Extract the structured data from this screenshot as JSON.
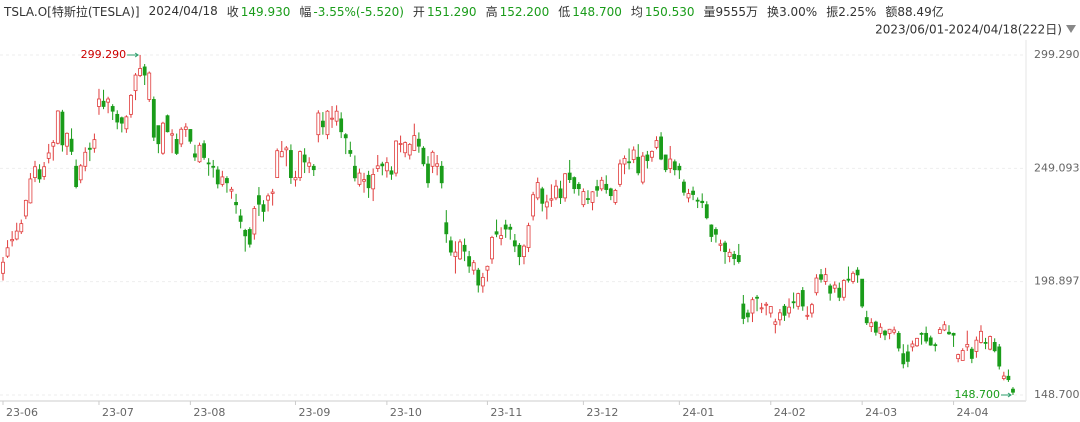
{
  "header": {
    "symbol": "TSLA.O[特斯拉(TESLA)]",
    "date": "2024/04/18",
    "fields": [
      {
        "label": "收",
        "value": "149.930"
      },
      {
        "label": "幅",
        "value": "-3.55%(-5.520)"
      },
      {
        "label": "开",
        "value": "151.290"
      },
      {
        "label": "高",
        "value": "152.200"
      },
      {
        "label": "低",
        "value": "148.700"
      },
      {
        "label": "均",
        "value": "150.530"
      },
      {
        "label": "量",
        "value": "9555万"
      },
      {
        "label": "换",
        "value": "3.00%"
      },
      {
        "label": "振",
        "value": "2.25%"
      },
      {
        "label": "额",
        "value": "88.49亿"
      }
    ]
  },
  "chart_data": {
    "type": "candlestick",
    "subtitle": "2023/06/01-2024/04/18(222日)",
    "max_label": "299.290",
    "min_label": "148.700",
    "up_color": "#e03c3c",
    "down_color": "#1a9c1a",
    "grid": true,
    "ylim": [
      148.7,
      299.29
    ],
    "yticks": [
      {
        "value": 299.29,
        "label": "299.290"
      },
      {
        "value": 249.093,
        "label": "249.093"
      },
      {
        "value": 198.897,
        "label": "198.897"
      },
      {
        "value": 148.7,
        "label": "148.700"
      }
    ],
    "xticks": [
      {
        "value": 0,
        "label": "23-06"
      },
      {
        "value": 21,
        "label": "23-07"
      },
      {
        "value": 41,
        "label": "23-08"
      },
      {
        "value": 64,
        "label": "23-09"
      },
      {
        "value": 84,
        "label": "23-10"
      },
      {
        "value": 106,
        "label": "23-11"
      },
      {
        "value": 127,
        "label": "23-12"
      },
      {
        "value": 148,
        "label": "24-01"
      },
      {
        "value": 168,
        "label": "24-02"
      },
      {
        "value": 188,
        "label": "24-03"
      },
      {
        "value": 208,
        "label": "24-04"
      }
    ],
    "candles": [
      [
        202.6,
        209.8,
        199.4,
        207.5
      ],
      [
        210.2,
        217.3,
        209.4,
        213.9
      ],
      [
        217.0,
        221.3,
        214.5,
        217.6
      ],
      [
        217.8,
        225.0,
        217.2,
        221.3
      ],
      [
        221.0,
        226.4,
        220.0,
        224.6
      ],
      [
        228.0,
        235.2,
        226.6,
        234.9
      ],
      [
        233.8,
        247.0,
        233.5,
        244.4
      ],
      [
        245.0,
        252.4,
        243.0,
        249.8
      ],
      [
        248.5,
        250.9,
        242.7,
        244.4
      ],
      [
        245.5,
        251.9,
        244.0,
        249.8
      ],
      [
        253.5,
        259.9,
        251.3,
        255.9
      ],
      [
        258.9,
        261.6,
        252.5,
        260.5
      ],
      [
        260.2,
        274.8,
        259.7,
        274.5
      ],
      [
        274.0,
        275.0,
        256.5,
        259.5
      ],
      [
        258.9,
        265.0,
        255.0,
        264.6
      ],
      [
        262.0,
        266.8,
        255.0,
        256.6
      ],
      [
        250.0,
        253.0,
        240.2,
        241.0
      ],
      [
        244.0,
        251.0,
        242.5,
        250.2
      ],
      [
        250.0,
        258.4,
        247.8,
        256.2
      ],
      [
        258.0,
        260.5,
        252.3,
        257.5
      ],
      [
        258.0,
        264.5,
        256.0,
        261.8
      ],
      [
        276.5,
        284.3,
        272.8,
        279.8
      ],
      [
        278.8,
        283.9,
        275.3,
        276.5
      ],
      [
        278.4,
        280.8,
        273.5,
        279.8
      ],
      [
        276.5,
        277.5,
        270.5,
        274.4
      ],
      [
        273.0,
        274.8,
        266.4,
        269.6
      ],
      [
        271.5,
        272.0,
        265.0,
        269.1
      ],
      [
        266.6,
        272.6,
        264.8,
        271.9
      ],
      [
        273.0,
        282.0,
        271.5,
        281.4
      ],
      [
        283.5,
        291.3,
        279.3,
        290.4
      ],
      [
        290.2,
        299.29,
        289.5,
        293.3
      ],
      [
        294.0,
        295.3,
        286.0,
        290.4
      ],
      [
        279.6,
        292.0,
        278.5,
        291.3
      ],
      [
        279.6,
        280.9,
        261.2,
        262.9
      ],
      [
        268.0,
        268.0,
        255.8,
        260.0
      ],
      [
        255.8,
        269.7,
        255.1,
        269.1
      ],
      [
        272.4,
        272.9,
        265.0,
        265.3
      ],
      [
        263.8,
        266.4,
        255.8,
        264.4
      ],
      [
        261.9,
        264.5,
        255.0,
        255.7
      ],
      [
        259.9,
        267.3,
        258.5,
        266.4
      ],
      [
        266.3,
        269.1,
        263.0,
        267.4
      ],
      [
        266.3,
        266.5,
        260.0,
        261.1
      ],
      [
        255.5,
        259.5,
        252.4,
        254.1
      ],
      [
        252.0,
        260.5,
        251.5,
        259.3
      ],
      [
        260.0,
        261.5,
        252.9,
        253.9
      ],
      [
        251.5,
        253.6,
        245.8,
        251.4
      ],
      [
        250.0,
        252.8,
        245.0,
        249.7
      ],
      [
        248.4,
        250.0,
        240.2,
        242.2
      ],
      [
        242.0,
        248.0,
        241.0,
        245.3
      ],
      [
        244.6,
        245.6,
        238.3,
        242.7
      ],
      [
        239.0,
        240.9,
        235.6,
        239.8
      ],
      [
        234.0,
        237.8,
        229.0,
        232.96
      ],
      [
        228.0,
        231.0,
        222.5,
        225.6
      ],
      [
        221.6,
        222.3,
        212.2,
        219.2
      ],
      [
        222.0,
        223.0,
        214.0,
        215.5
      ],
      [
        220.0,
        232.4,
        217.5,
        231.3
      ],
      [
        237.0,
        240.8,
        228.0,
        233.2
      ],
      [
        233.0,
        235.0,
        225.5,
        230.0
      ],
      [
        235.0,
        238.0,
        230.0,
        236.9
      ],
      [
        238.0,
        240.0,
        232.6,
        238.6
      ],
      [
        245.0,
        257.9,
        244.8,
        256.9
      ],
      [
        254.2,
        261.2,
        254.0,
        256.5
      ],
      [
        257.3,
        259.0,
        250.0,
        258.1
      ],
      [
        257.0,
        259.7,
        242.2,
        245.0
      ],
      [
        244.0,
        248.0,
        241.0,
        245.0
      ],
      [
        245.0,
        257.0,
        243.5,
        256.5
      ],
      [
        255.0,
        258.0,
        247.0,
        251.9
      ],
      [
        250.0,
        254.0,
        247.0,
        251.5
      ],
      [
        250.0,
        251.0,
        245.7,
        248.5
      ],
      [
        264.0,
        274.8,
        260.6,
        273.6
      ],
      [
        270.0,
        274.0,
        264.0,
        267.5
      ],
      [
        264.0,
        274.9,
        262.0,
        274.4
      ],
      [
        271.0,
        276.7,
        267.0,
        271.3
      ],
      [
        270.0,
        277.0,
        268.0,
        274.4
      ],
      [
        271.0,
        273.9,
        262.5,
        265.3
      ],
      [
        264.0,
        264.7,
        255.4,
        262.6
      ],
      [
        257.0,
        260.9,
        254.2,
        255.7
      ],
      [
        250.0,
        254.8,
        243.3,
        244.9
      ],
      [
        242.0,
        249.0,
        241.0,
        246.99
      ],
      [
        243.4,
        247.1,
        238.3,
        244.1
      ],
      [
        246.0,
        248.0,
        236.0,
        240.5
      ],
      [
        240.0,
        249.0,
        234.6,
        246.4
      ],
      [
        249.0,
        255.0,
        247.5,
        250.2
      ],
      [
        251.0,
        252.0,
        246.0,
        250.2
      ],
      [
        248.0,
        254.0,
        245.0,
        251.6
      ],
      [
        248.0,
        250.0,
        244.0,
        246.5
      ],
      [
        247.0,
        261.5,
        245.5,
        261.2
      ],
      [
        260.0,
        263.6,
        256.2,
        260.1
      ],
      [
        256.0,
        261.0,
        254.0,
        260.5
      ],
      [
        255.0,
        260.3,
        253.0,
        259.7
      ],
      [
        257.0,
        268.9,
        256.9,
        263.6
      ],
      [
        262.0,
        265.0,
        256.0,
        258.9
      ],
      [
        258.0,
        258.9,
        250.0,
        251.1
      ],
      [
        251.0,
        254.5,
        240.5,
        242.7
      ],
      [
        250.0,
        257.0,
        247.0,
        256.2
      ],
      [
        250.0,
        255.0,
        246.0,
        251.1
      ],
      [
        250.0,
        252.3,
        240.2,
        242.7
      ],
      [
        225.0,
        230.6,
        216.1,
        220.1
      ],
      [
        217.0,
        218.9,
        210.4,
        212.0
      ],
      [
        210.0,
        216.8,
        202.5,
        211.99
      ],
      [
        209.0,
        217.7,
        208.5,
        216.5
      ],
      [
        215.0,
        218.0,
        208.0,
        212.4
      ],
      [
        210.0,
        212.5,
        202.8,
        205.8
      ],
      [
        204.0,
        208.5,
        202.0,
        207.3
      ],
      [
        204.0,
        205.0,
        194.1,
        197.4
      ],
      [
        197.0,
        202.8,
        194.0,
        200.8
      ],
      [
        204.0,
        206.0,
        199.0,
        205.7
      ],
      [
        209.0,
        219.2,
        206.8,
        218.5
      ],
      [
        221.0,
        226.4,
        218.6,
        219.96
      ],
      [
        218.0,
        223.0,
        215.0,
        219.3
      ],
      [
        224.0,
        226.3,
        218.3,
        222.2
      ],
      [
        223.0,
        224.5,
        217.5,
        222.1
      ],
      [
        217.0,
        220.0,
        212.0,
        214.7
      ],
      [
        215.0,
        216.0,
        206.2,
        209.98
      ],
      [
        210.0,
        215.4,
        206.6,
        214.65
      ],
      [
        214.0,
        225.0,
        212.0,
        223.7
      ],
      [
        228.0,
        238.7,
        226.0,
        237.4
      ],
      [
        236.0,
        245.0,
        235.0,
        242.8
      ],
      [
        240.0,
        240.9,
        230.0,
        233.6
      ],
      [
        232.0,
        237.4,
        226.5,
        234.2
      ],
      [
        235.0,
        242.0,
        232.0,
        235.6
      ],
      [
        236.0,
        244.0,
        235.0,
        241.2
      ],
      [
        240.0,
        243.6,
        233.3,
        236.1
      ],
      [
        236.0,
        247.0,
        234.3,
        246.7
      ],
      [
        247.0,
        252.8,
        242.6,
        244.1
      ],
      [
        245.0,
        245.5,
        237.9,
        240.1
      ],
      [
        242.0,
        243.0,
        237.0,
        240.1
      ],
      [
        233.0,
        240.2,
        231.9,
        238.8
      ],
      [
        235.7,
        239.4,
        233.3,
        235.6
      ],
      [
        234.0,
        239.0,
        230.5,
        238.7
      ],
      [
        241.0,
        244.0,
        236.5,
        239.4
      ],
      [
        240.0,
        245.3,
        239.0,
        243.8
      ],
      [
        242.0,
        246.0,
        237.9,
        239.7
      ],
      [
        240.0,
        240.5,
        235.0,
        237.0
      ],
      [
        234.0,
        240.0,
        233.0,
        239.3
      ],
      [
        242.0,
        253.0,
        240.9,
        251.05
      ],
      [
        251.0,
        254.8,
        246.5,
        253.5
      ],
      [
        252.0,
        257.9,
        248.6,
        251.9
      ],
      [
        253.0,
        258.8,
        251.4,
        257.2
      ],
      [
        254.0,
        259.8,
        246.0,
        247.1
      ],
      [
        243.0,
        256.3,
        242.0,
        254.5
      ],
      [
        255.0,
        256.8,
        249.0,
        252.5
      ],
      [
        254.0,
        257.0,
        252.0,
        256.6
      ],
      [
        258.4,
        263.3,
        257.5,
        261.4
      ],
      [
        263.0,
        265.1,
        252.7,
        253.2
      ],
      [
        255.0,
        255.2,
        247.4,
        248.5
      ],
      [
        249.0,
        259.0,
        247.0,
        253.2
      ],
      [
        252.0,
        253.0,
        246.0,
        248.48
      ],
      [
        250.0,
        251.3,
        244.4,
        248.4
      ],
      [
        243.0,
        244.2,
        237.0,
        238.5
      ],
      [
        236.0,
        240.0,
        234.0,
        237.9
      ],
      [
        239.0,
        241.0,
        235.0,
        237.5
      ],
      [
        235.0,
        236.2,
        231.5,
        234.96
      ],
      [
        234.5,
        238.0,
        231.5,
        233.9
      ],
      [
        233.0,
        234.5,
        226.5,
        227.2
      ],
      [
        224.0,
        224.3,
        216.5,
        218.9
      ],
      [
        222.0,
        223.0,
        216.2,
        219.9
      ],
      [
        215.0,
        217.5,
        212.4,
        215.6
      ],
      [
        216.0,
        217.0,
        206.8,
        212.2
      ],
      [
        210.0,
        213.5,
        207.5,
        211.9
      ],
      [
        211.0,
        212.5,
        206.2,
        209.1
      ],
      [
        210.5,
        215.6,
        206.9,
        207.8
      ],
      [
        189.0,
        193.0,
        180.1,
        182.6
      ],
      [
        185.0,
        186.5,
        180.9,
        183.3
      ],
      [
        185.0,
        192.0,
        181.0,
        190.9
      ],
      [
        192.0,
        193.0,
        185.8,
        191.6
      ],
      [
        187.0,
        189.5,
        185.0,
        187.3
      ],
      [
        188.5,
        189.9,
        184.0,
        188.9
      ],
      [
        185.0,
        188.0,
        183.0,
        187.9
      ],
      [
        180.0,
        182.5,
        176.0,
        181.1
      ],
      [
        182.0,
        186.8,
        179.5,
        185.1
      ],
      [
        188.0,
        189.0,
        181.5,
        184.0
      ],
      [
        185.0,
        191.5,
        183.0,
        187.6
      ],
      [
        190.0,
        194.1,
        187.0,
        189.6
      ],
      [
        188.0,
        194.0,
        186.5,
        193.6
      ],
      [
        195.0,
        196.5,
        186.0,
        188.1
      ],
      [
        184.0,
        188.0,
        182.0,
        184.0
      ],
      [
        185.0,
        189.5,
        183.0,
        188.7
      ],
      [
        194.0,
        202.2,
        192.8,
        200.5
      ],
      [
        202.0,
        204.5,
        198.5,
        199.95
      ],
      [
        199.0,
        205.0,
        197.5,
        202.0
      ],
      [
        197.0,
        198.0,
        190.5,
        193.8
      ],
      [
        196.0,
        199.0,
        194.0,
        197.4
      ],
      [
        196.0,
        198.5,
        190.3,
        191.97
      ],
      [
        192.0,
        200.0,
        190.5,
        199.4
      ],
      [
        200.0,
        205.6,
        198.5,
        199.7
      ],
      [
        199.0,
        203.5,
        198.0,
        202.6
      ],
      [
        204.0,
        205.3,
        198.4,
        201.9
      ],
      [
        200.0,
        200.0,
        187.2,
        188.1
      ],
      [
        183.0,
        186.0,
        179.7,
        180.7
      ],
      [
        179.0,
        182.7,
        176.6,
        180.7
      ],
      [
        181.0,
        181.6,
        175.0,
        176.5
      ],
      [
        176.0,
        180.5,
        174.0,
        178.7
      ],
      [
        177.0,
        177.6,
        173.0,
        175.3
      ],
      [
        176.0,
        178.0,
        173.4,
        177.8
      ],
      [
        176.5,
        179.0,
        175.5,
        177.5
      ],
      [
        176.0,
        177.0,
        168.0,
        169.5
      ],
      [
        167.0,
        171.2,
        160.5,
        162.5
      ],
      [
        167.8,
        171.0,
        161.0,
        163.6
      ],
      [
        170.0,
        172.8,
        168.0,
        171.3
      ],
      [
        170.5,
        174.0,
        170.0,
        173.8
      ],
      [
        176.0,
        176.5,
        171.0,
        175.7
      ],
      [
        176.0,
        179.0,
        171.5,
        172.6
      ],
      [
        174.0,
        175.0,
        170.5,
        170.8
      ],
      [
        171.0,
        171.9,
        168.0,
        170.8
      ],
      [
        176.0,
        178.8,
        176.0,
        177.7
      ],
      [
        177.5,
        181.4,
        177.0,
        179.8
      ],
      [
        176.5,
        179.6,
        175.3,
        175.8
      ],
      [
        176.0,
        176.3,
        170.0,
        175.2
      ],
      [
        164.8,
        167.0,
        163.2,
        166.6
      ],
      [
        164.0,
        169.4,
        164.0,
        168.4
      ],
      [
        170.0,
        177.2,
        168.2,
        171.1
      ],
      [
        169.0,
        170.0,
        162.8,
        164.9
      ],
      [
        168.0,
        174.6,
        165.2,
        172.98
      ],
      [
        172.0,
        179.6,
        171.5,
        176.9
      ],
      [
        172.0,
        174.0,
        169.0,
        171.8
      ],
      [
        169.0,
        175.0,
        168.5,
        174.6
      ],
      [
        172.0,
        173.8,
        167.6,
        168.3
      ],
      [
        170.0,
        171.3,
        160.0,
        161.5
      ],
      [
        156.0,
        159.0,
        155.2,
        157.1
      ],
      [
        157.0,
        160.0,
        154.5,
        155.5
      ],
      [
        151.29,
        152.2,
        148.7,
        149.93
      ]
    ]
  }
}
